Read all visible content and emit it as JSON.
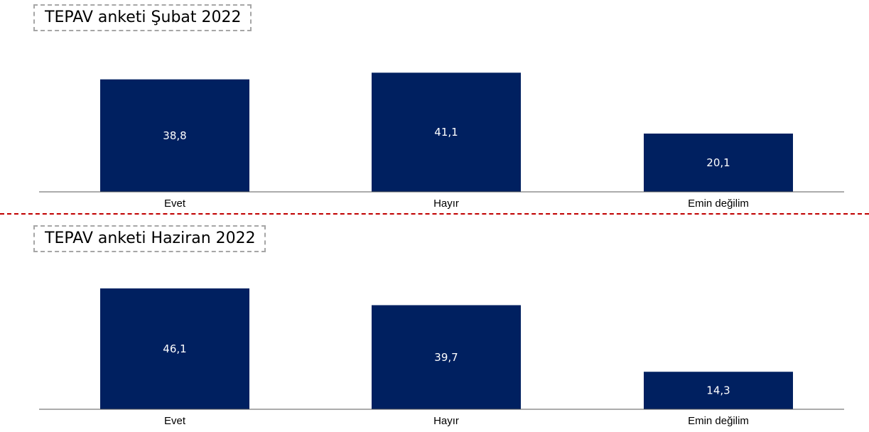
{
  "chart_data": [
    {
      "type": "bar",
      "title": "TEPAV anketi Şubat 2022",
      "categories": [
        "Evet",
        "Hayır",
        "Emin değilim"
      ],
      "values": [
        38.8,
        41.1,
        20.1
      ],
      "value_labels": [
        "38,8",
        "41,1",
        "20,1"
      ],
      "xlabel": "",
      "ylabel": "",
      "ylim": [
        0,
        45
      ],
      "grid": false,
      "bar_color": "#002060"
    },
    {
      "type": "bar",
      "title": "TEPAV anketi Haziran 2022",
      "categories": [
        "Evet",
        "Hayır",
        "Emin değilim"
      ],
      "values": [
        46.1,
        39.7,
        14.3
      ],
      "value_labels": [
        "46,1",
        "39,7",
        "14,3"
      ],
      "xlabel": "",
      "ylabel": "",
      "ylim": [
        0,
        50
      ],
      "grid": false,
      "bar_color": "#002060"
    }
  ]
}
